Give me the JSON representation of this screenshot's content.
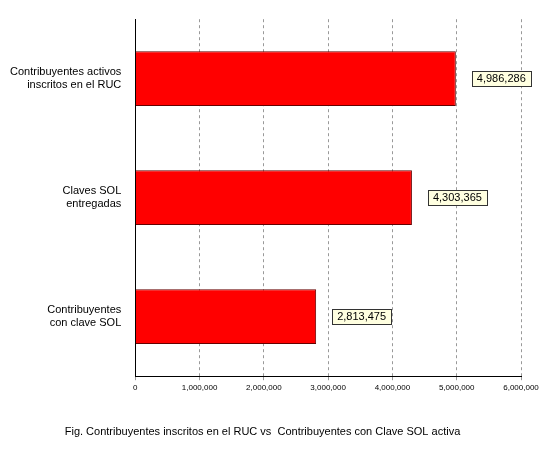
{
  "chart_data": {
    "type": "bar",
    "orientation": "horizontal",
    "title": "Fig. Contribuyentes inscritos en el RUC vs  Contribuyentes con Clave SOL activa",
    "categories": [
      "Contribuyentes activos\ninscritos en el RUC",
      "Claves SOL\nentregadas",
      "Contribuyentes\ncon clave SOL"
    ],
    "values": [
      4986286,
      4303365,
      2813475
    ],
    "value_labels": [
      "4,986,286",
      "4,303,365",
      "2,813,475"
    ],
    "data_labels": true,
    "color": "#ff0000",
    "xlim": [
      0,
      6000000
    ],
    "xticks": [
      0,
      {
        "value": 1000000,
        "label": "1,000,000"
      },
      {
        "value": 2000000,
        "label": "2,000,000"
      },
      {
        "value": 3000000,
        "label": "3,000,000"
      },
      {
        "value": 4000000,
        "label": "4,000,000"
      },
      {
        "value": 5000000,
        "label": "5,000,000"
      },
      {
        "value": 6000000,
        "label": "6,000,000"
      }
    ],
    "grid": true
  }
}
